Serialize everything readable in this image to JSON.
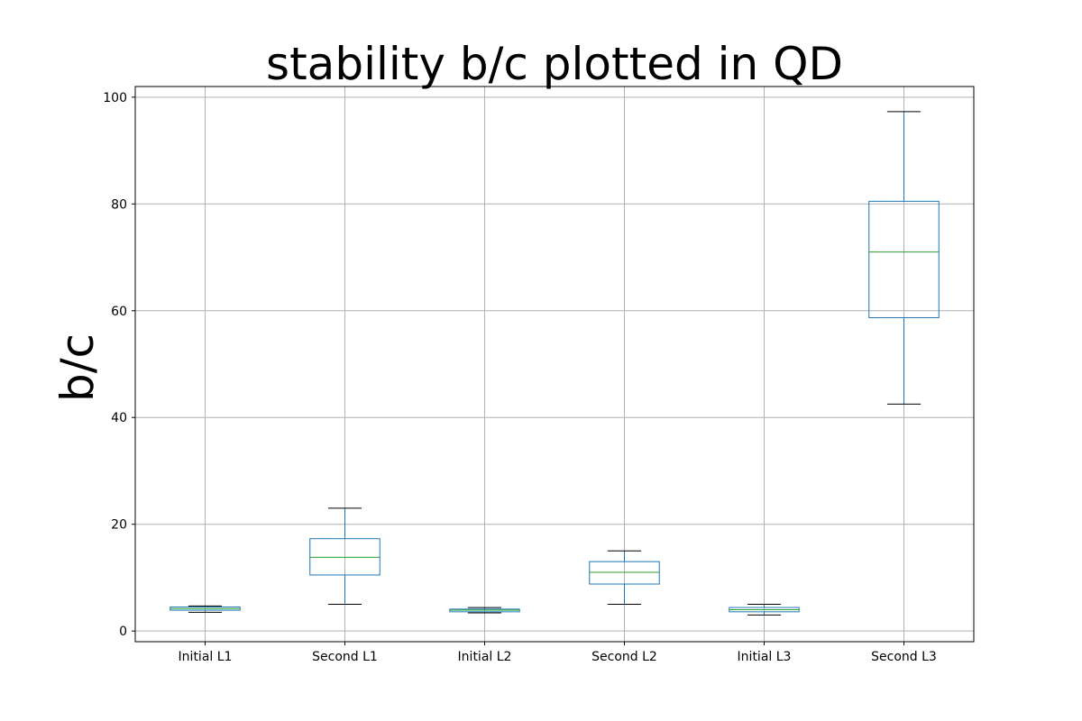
{
  "chart_data": {
    "type": "box",
    "title": "stability b/c plotted in QD",
    "xlabel": "",
    "ylabel": "b/c",
    "ylim": [
      -2,
      102
    ],
    "yticks": [
      0,
      20,
      40,
      60,
      80,
      100
    ],
    "grid": true,
    "categories": [
      "Initial L1",
      "Second L1",
      "Initial L2",
      "Second L2",
      "Initial L3",
      "Second L3"
    ],
    "boxes": [
      {
        "whisker_low": 3.5,
        "q1": 3.9,
        "median": 4.2,
        "q3": 4.5,
        "whisker_high": 4.7
      },
      {
        "whisker_low": 5.0,
        "q1": 10.5,
        "median": 13.8,
        "q3": 17.3,
        "whisker_high": 23.0
      },
      {
        "whisker_low": 3.4,
        "q1": 3.6,
        "median": 3.9,
        "q3": 4.1,
        "whisker_high": 4.4
      },
      {
        "whisker_low": 5.0,
        "q1": 8.8,
        "median": 11.0,
        "q3": 13.0,
        "whisker_high": 15.0
      },
      {
        "whisker_low": 3.0,
        "q1": 3.6,
        "median": 4.0,
        "q3": 4.4,
        "whisker_high": 5.0
      },
      {
        "whisker_low": 42.5,
        "q1": 58.7,
        "median": 71.0,
        "q3": 80.5,
        "whisker_high": 97.3
      }
    ],
    "colors": {
      "box": "#1f77b4",
      "median": "#2ca02c",
      "cap": "#000000"
    }
  }
}
